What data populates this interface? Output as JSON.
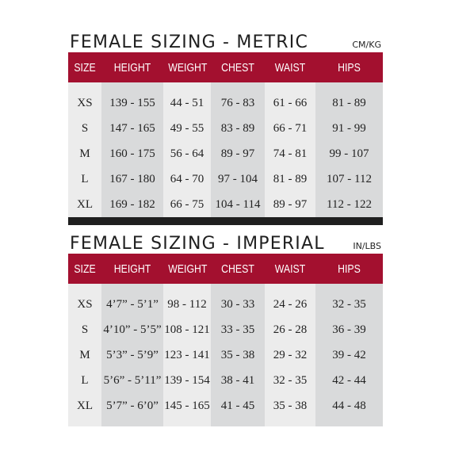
{
  "metric": {
    "title": "FEMALE SIZING - METRIC",
    "unit": "CM/KG",
    "headers": [
      "SIZE",
      "HEIGHT",
      "WEIGHT",
      "CHEST",
      "WAIST",
      "HIPS"
    ],
    "rows": [
      [
        "XS",
        "139 - 155",
        "44 - 51",
        "76 - 83",
        "61 - 66",
        "81 - 89"
      ],
      [
        "S",
        "147 - 165",
        "49 - 55",
        "83 - 89",
        "66 - 71",
        "91 - 99"
      ],
      [
        "M",
        "160 - 175",
        "56 - 64",
        "89 - 97",
        "74 - 81",
        "99 - 107"
      ],
      [
        "L",
        "167 - 180",
        "64 - 70",
        "97 - 104",
        "81 - 89",
        "107 - 112"
      ],
      [
        "XL",
        "169 - 182",
        "66 - 75",
        "104 - 114",
        "89 - 97",
        "112 - 122"
      ]
    ]
  },
  "imperial": {
    "title": "FEMALE SIZING - IMPERIAL",
    "unit": "IN/LBS",
    "headers": [
      "SIZE",
      "HEIGHT",
      "WEIGHT",
      "CHEST",
      "WAIST",
      "HIPS"
    ],
    "rows": [
      [
        "XS",
        "4’7” - 5’1”",
        "98 - 112",
        "30 - 33",
        "24 - 26",
        "32 - 35"
      ],
      [
        "S",
        "4’10” - 5’5”",
        "108 - 121",
        "33 - 35",
        "26 - 28",
        "36 - 39"
      ],
      [
        "M",
        "5’3” - 5’9”",
        "123 - 141",
        "35 - 38",
        "29 - 32",
        "39 - 42"
      ],
      [
        "L",
        "5’6” - 5’11”",
        "139 - 154",
        "38 - 41",
        "32 - 35",
        "42 - 44"
      ],
      [
        "XL",
        "5’7” - 6’0”",
        "145 - 165",
        "41 - 45",
        "35 - 38",
        "44 - 48"
      ]
    ]
  }
}
